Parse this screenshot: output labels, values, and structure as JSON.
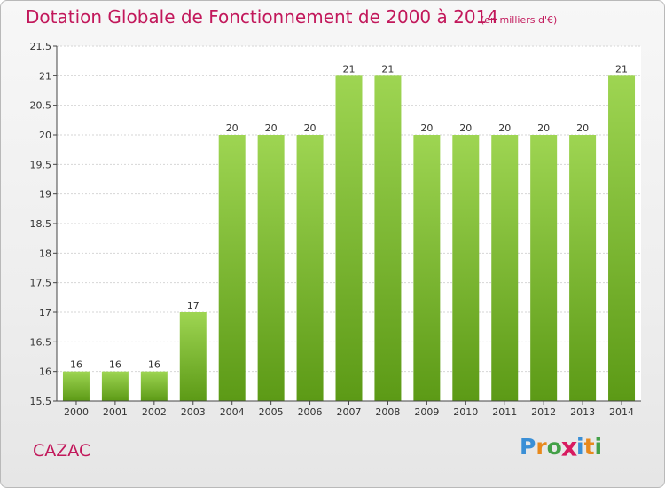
{
  "header": {
    "title": "Dotation Globale de Fonctionnement de 2000 à 2014",
    "subtitle": "(en milliers d'€)"
  },
  "footer": {
    "commune": "CAZAC",
    "logo_letters": [
      "P",
      "r",
      "o",
      "x",
      "i",
      "t",
      "i"
    ],
    "logo_colors": [
      "#3a8fd6",
      "#e8891c",
      "#43a047",
      "#d81b60",
      "#3a8fd6",
      "#e8891c",
      "#43a047"
    ]
  },
  "colors": {
    "title": "#c2185b",
    "bar_top": "#9ed552",
    "bar_bottom": "#5c9a16",
    "grid": "#d6d6d6",
    "axis": "#444444"
  },
  "chart_data": {
    "type": "bar",
    "title": "Dotation Globale de Fonctionnement de 2000 à 2014",
    "subtitle": "(en milliers d'€)",
    "xlabel": "",
    "ylabel": "",
    "categories": [
      "2000",
      "2001",
      "2002",
      "2003",
      "2004",
      "2005",
      "2006",
      "2007",
      "2008",
      "2009",
      "2010",
      "2011",
      "2012",
      "2013",
      "2014"
    ],
    "values": [
      16,
      16,
      16,
      17,
      20,
      20,
      20,
      21,
      21,
      20,
      20,
      20,
      20,
      20,
      21
    ],
    "value_labels": [
      "16",
      "16",
      "16",
      "17",
      "20",
      "20",
      "20",
      "21",
      "21",
      "20",
      "20",
      "20",
      "20",
      "20",
      "21"
    ],
    "ylim": [
      15.5,
      21.5
    ],
    "yticks": [
      15.5,
      16,
      16.5,
      17,
      17.5,
      18,
      18.5,
      19,
      19.5,
      20,
      20.5,
      21,
      21.5
    ],
    "ytick_labels": [
      "15.5",
      "16",
      "16.5",
      "17",
      "17.5",
      "18",
      "18.5",
      "19",
      "19.5",
      "20",
      "20.5",
      "21",
      "21.5"
    ],
    "grid": true,
    "legend": "none"
  }
}
